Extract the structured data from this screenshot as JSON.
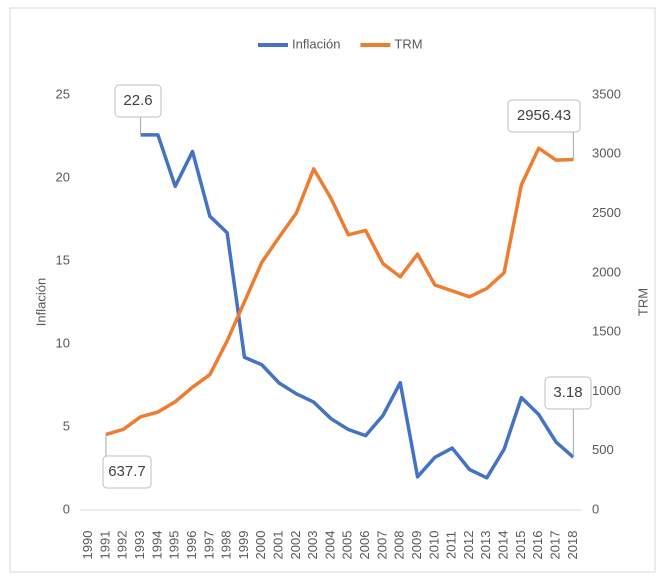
{
  "chart_data": {
    "type": "line",
    "y_label": "Inflación",
    "y2_label": "TRM",
    "categories": [
      "1990",
      "1991",
      "1992",
      "1993",
      "1994",
      "1995",
      "1996",
      "1997",
      "1998",
      "1999",
      "2000",
      "2001",
      "2002",
      "2003",
      "2004",
      "2005",
      "2006",
      "2007",
      "2008",
      "2009",
      "2010",
      "2011",
      "2012",
      "2013",
      "2014",
      "2015",
      "2016",
      "2017",
      "2018"
    ],
    "series": [
      {
        "name": "Inflación",
        "color": "#4472c4",
        "axis": "y",
        "values": [
          null,
          null,
          null,
          22.6,
          22.6,
          19.5,
          21.6,
          17.7,
          16.7,
          9.2,
          8.75,
          7.65,
          7.0,
          6.5,
          5.5,
          4.85,
          4.48,
          5.69,
          7.67,
          2.0,
          3.17,
          3.73,
          2.44,
          1.94,
          3.66,
          6.77,
          5.75,
          4.09,
          3.18
        ],
        "value_labels": [
          null,
          null,
          null,
          "22.6",
          null,
          null,
          null,
          null,
          null,
          null,
          null,
          null,
          null,
          null,
          null,
          null,
          null,
          null,
          null,
          null,
          null,
          null,
          null,
          null,
          null,
          null,
          null,
          null,
          "3.18"
        ]
      },
      {
        "name": "TRM",
        "color": "#ed7d31",
        "axis": "y2",
        "values": [
          null,
          637.7,
          680,
          786,
          826,
          913,
          1036,
          1141,
          1426,
          1756,
          2088,
          2300,
          2505,
          2877,
          2628,
          2321,
          2358,
          2078,
          1967,
          2158,
          1898,
          1848,
          1798,
          1869,
          2001,
          2743,
          3051,
          2951,
          2956.43
        ],
        "value_labels": [
          null,
          "637.7",
          null,
          null,
          null,
          null,
          null,
          null,
          null,
          null,
          null,
          null,
          null,
          null,
          null,
          null,
          null,
          null,
          null,
          null,
          null,
          null,
          null,
          null,
          null,
          null,
          null,
          null,
          "2956.43"
        ]
      }
    ],
    "ylim": [
      0,
      25
    ],
    "yticks": [
      0,
      5,
      10,
      15,
      20,
      25
    ],
    "y2lim": [
      0,
      3500
    ],
    "y2ticks": [
      0,
      500,
      1000,
      1500,
      2000,
      2500,
      3000,
      3500
    ],
    "grid": false,
    "legend": "top"
  }
}
